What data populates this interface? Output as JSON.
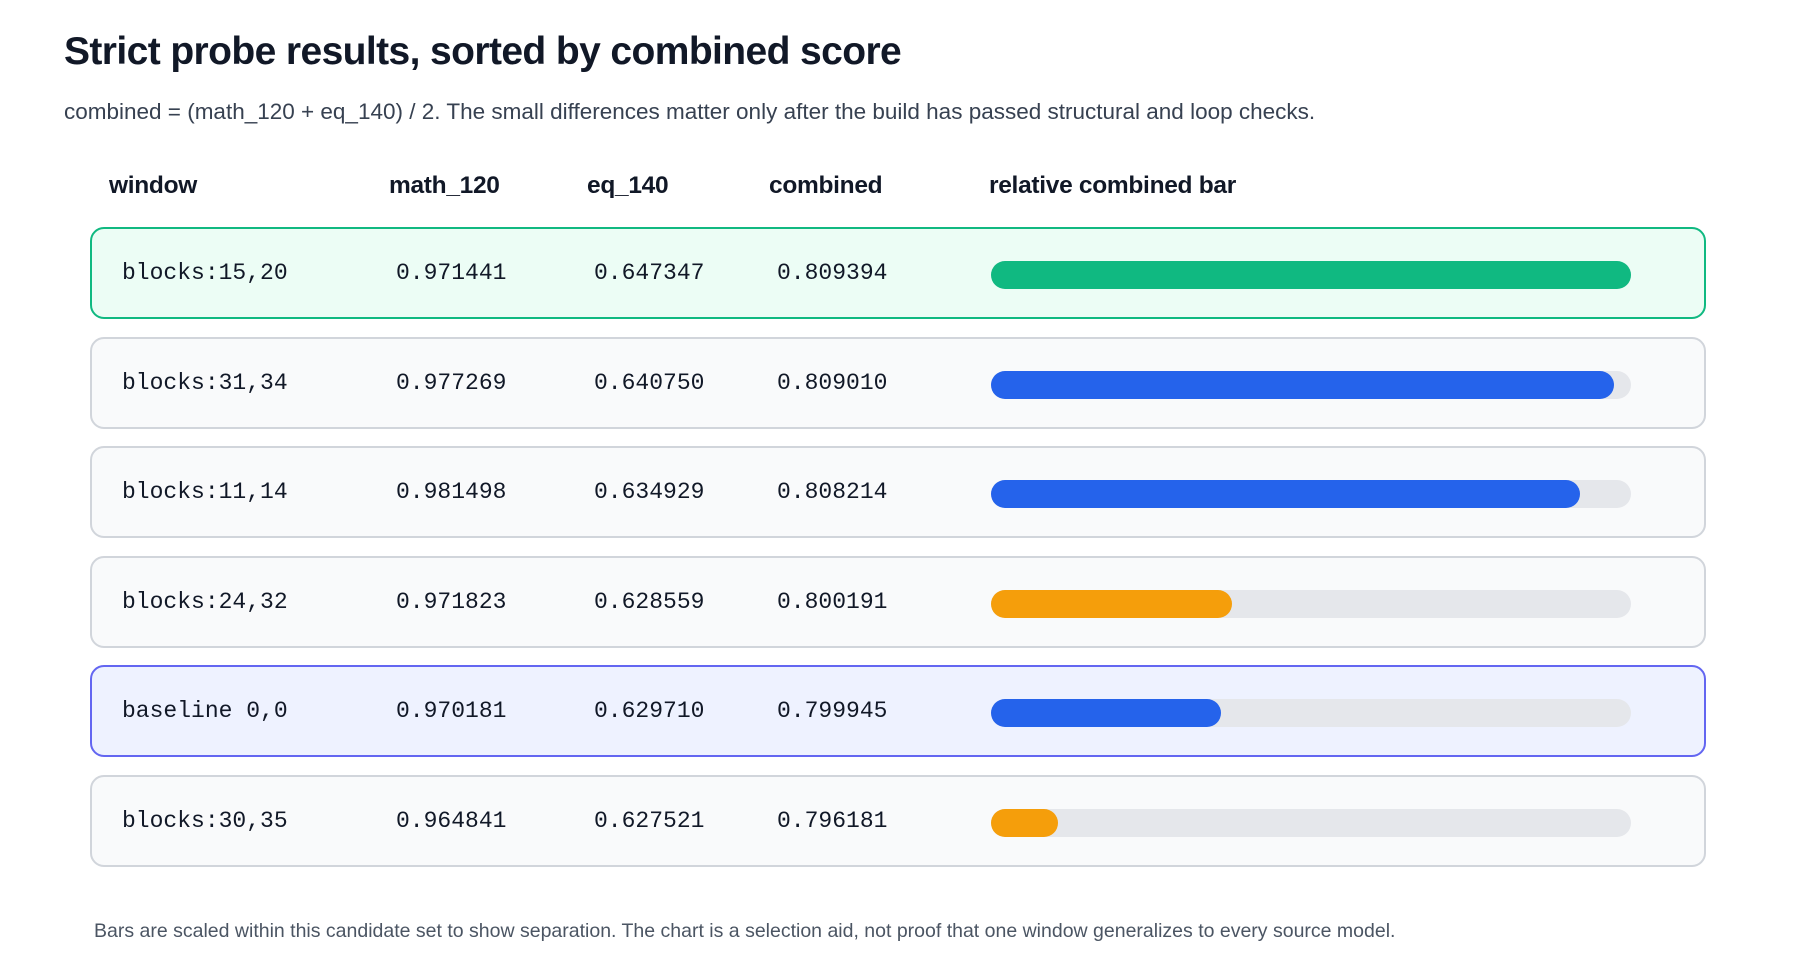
{
  "title": "Strict probe results, sorted by combined score",
  "subtitle": "combined = (math_120 + eq_140) / 2. The small differences matter only after the build has passed structural and loop checks.",
  "footnote": "Bars are scaled within this candidate set to show separation. The chart is a selection aid, not proof that one window generalizes to every source model.",
  "colors": {
    "best": "#10b981",
    "blue": "#2563eb",
    "orange": "#f59e0b",
    "track": "#e5e7eb"
  },
  "chart_data": {
    "type": "table",
    "columns": [
      "window",
      "math_120",
      "eq_140",
      "combined",
      "relative combined bar"
    ],
    "rows": [
      {
        "window": "blocks:15,20",
        "math_120": "0.971441",
        "eq_140": "0.647347",
        "combined": "0.809394",
        "bar_fraction": 1.0,
        "bar_color": "#10b981",
        "highlight": "best"
      },
      {
        "window": "blocks:31,34",
        "math_120": "0.977269",
        "eq_140": "0.640750",
        "combined": "0.809010",
        "bar_fraction": 0.974,
        "bar_color": "#2563eb",
        "highlight": "none"
      },
      {
        "window": "blocks:11,14",
        "math_120": "0.981498",
        "eq_140": "0.634929",
        "combined": "0.808214",
        "bar_fraction": 0.92,
        "bar_color": "#2563eb",
        "highlight": "none"
      },
      {
        "window": "blocks:24,32",
        "math_120": "0.971823",
        "eq_140": "0.628559",
        "combined": "0.800191",
        "bar_fraction": 0.377,
        "bar_color": "#f59e0b",
        "highlight": "none"
      },
      {
        "window": "baseline 0,0",
        "math_120": "0.970181",
        "eq_140": "0.629710",
        "combined": "0.799945",
        "bar_fraction": 0.36,
        "bar_color": "#2563eb",
        "highlight": "baseline"
      },
      {
        "window": "blocks:30,35",
        "math_120": "0.964841",
        "eq_140": "0.627521",
        "combined": "0.796181",
        "bar_fraction": 0.105,
        "bar_color": "#f59e0b",
        "highlight": "none"
      }
    ]
  }
}
